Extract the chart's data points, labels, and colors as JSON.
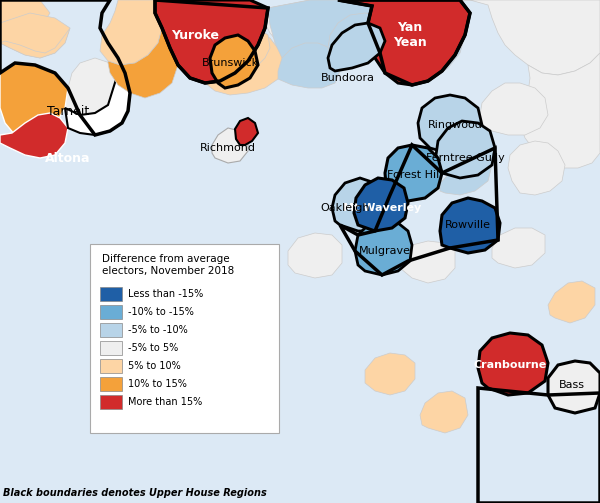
{
  "legend_title": "Difference from average\nelectors, November 2018",
  "footnote": "Black boundaries denotes Upper House Regions",
  "colors": {
    "less_than_neg15": "#1f5fa6",
    "neg10_to_neg15": "#6aadd5",
    "neg5_to_neg10": "#b8d4e8",
    "neg5_to_5": "#efefef",
    "pos5_to_10": "#fdd5a5",
    "pos10_to_15": "#f4a13a",
    "more_than_15": "#d12b2b"
  },
  "legend_items": [
    {
      "color": "#1f5fa6",
      "label": "Less than -15%"
    },
    {
      "color": "#6aadd5",
      "label": "-10% to -15%"
    },
    {
      "color": "#b8d4e8",
      "label": "-5% to -10%"
    },
    {
      "color": "#efefef",
      "label": "-5% to 5%"
    },
    {
      "color": "#fdd5a5",
      "label": "5% to 10%"
    },
    {
      "color": "#f4a13a",
      "label": "10% to 15%"
    },
    {
      "color": "#d12b2b",
      "label": "More than 15%"
    }
  ]
}
